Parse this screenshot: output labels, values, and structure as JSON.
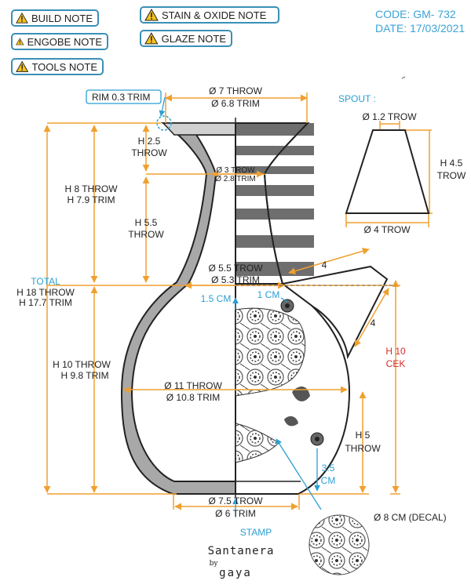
{
  "notes": [
    {
      "label": "BUILD NOTE"
    },
    {
      "label": "ENGOBE NOTE"
    },
    {
      "label": "TOOLS NOTE"
    },
    {
      "label": "STAIN & OXIDE NOTE"
    },
    {
      "label": "GLAZE NOTE"
    }
  ],
  "header": {
    "code": "CODE: GM- 732",
    "date": "DATE: 17/03/2021"
  },
  "dims": {
    "rim": "RIM 0.3 TRIM",
    "top_throw": "Ø 7 THROW",
    "top_trim": "Ø 6.8 TRIM",
    "h25_a": "H 2.5",
    "h25_b": "THROW",
    "neck_throw": "Ø 3 TROW",
    "neck_trim": "Ø 2.8 TRIM",
    "h8_throw": "H 8 THROW",
    "h8_trim": "H 7.9 TRIM",
    "h55_a": "H 5.5",
    "h55_b": "THROW",
    "shoulder_throw": "Ø 5.5 TROW",
    "shoulder_trim": "Ø 5.3 TRIM",
    "total": "TOTAL",
    "h18_throw": "H 18 THROW",
    "h18_trim": "H 17.7 TRIM",
    "cm15": "1.5 CM",
    "cm1": "1 CM",
    "h10_throw": "H 10 THROW",
    "h10_trim": "H 9.8 TRIM",
    "body_throw": "Ø 11 THROW",
    "body_trim": "Ø 10.8 TRIM",
    "h5_a": "H 5",
    "h5_b": "THROW",
    "cm35_a": "3.5",
    "cm35_b": "CM",
    "base_throw": "Ø 7.5 TROW",
    "base_trim": "Ø 6 TRIM",
    "stamp": "STAMP",
    "decal": "Ø 8 CM (DECAL)",
    "spout_title": "SPOUT :",
    "spout_top": "Ø 1.2 TROW",
    "spout_h_a": "H 4.5",
    "spout_h_b": "TROW",
    "spout_bottom": "Ø 4 TROW",
    "four_a": "4",
    "four_b": "4",
    "h10cek_a": "H 10",
    "h10cek_b": "CEK"
  },
  "brand": {
    "name": "Santanera",
    "by": "by",
    "maker": "gaya"
  },
  "colors": {
    "accent": "#3a8fb7",
    "dim": "#f0a030",
    "clay": "#a8a8a8",
    "red": "#d62b2b"
  }
}
